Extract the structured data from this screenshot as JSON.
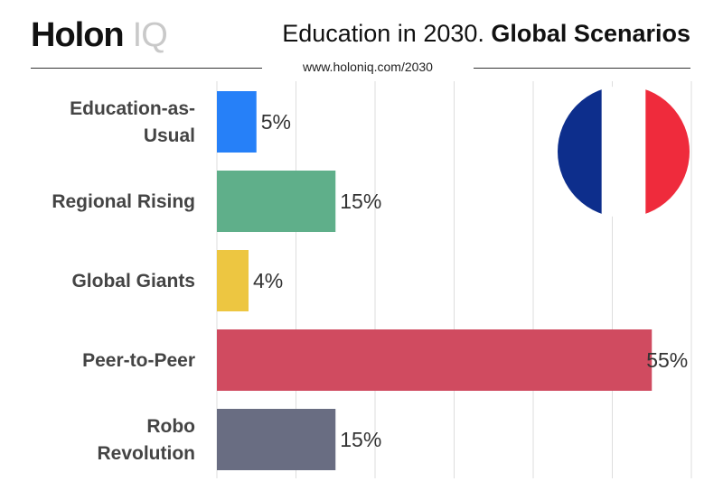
{
  "header": {
    "logo_main": "Holon",
    "logo_suffix": "IQ",
    "title_regular": "Education in 2030.",
    "title_bold": "Global Scenarios",
    "url": "www.holoniq.com/2030"
  },
  "flag": {
    "icon": "france-flag-icon",
    "colors": [
      "#0d2e8c",
      "#ffffff",
      "#ef2b3c"
    ]
  },
  "chart_data": {
    "type": "bar",
    "orientation": "horizontal",
    "categories": [
      "Education-as-Usual",
      "Regional Rising",
      "Global Giants",
      "Peer-to-Peer",
      "Robo Revolution"
    ],
    "category_lines": [
      [
        "Education-as-",
        "Usual"
      ],
      [
        "Regional Rising"
      ],
      [
        "Global Giants"
      ],
      [
        "Peer-to-Peer"
      ],
      [
        "Robo",
        "Revolution"
      ]
    ],
    "values": [
      5,
      15,
      4,
      55,
      15
    ],
    "value_labels": [
      "5%",
      "15%",
      "4%",
      "55%",
      "15%"
    ],
    "colors": [
      "#2680f8",
      "#5faf8a",
      "#edc641",
      "#d04b60",
      "#696d82"
    ],
    "xlim": [
      0,
      60
    ],
    "grid": true,
    "legend": "none"
  }
}
